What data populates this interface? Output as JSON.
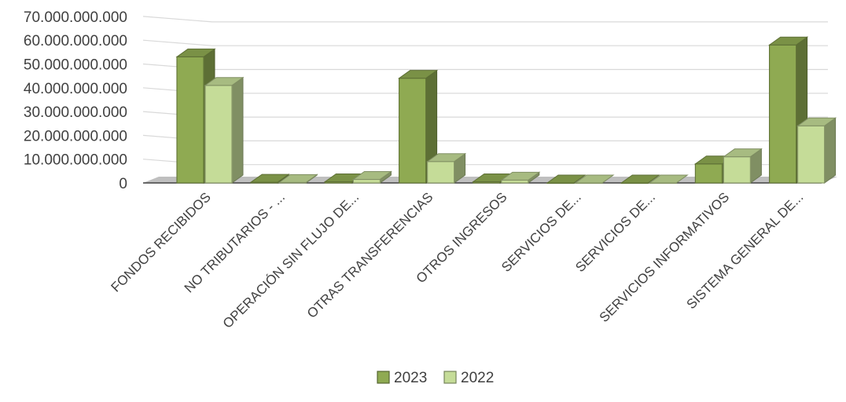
{
  "chart_data": {
    "type": "bar",
    "subtype": "3d-clustered-column",
    "categories": [
      "FONDOS RECIBIDOS",
      "NO TRIBUTARIOS - ...",
      "OPERACIÓN SIN FLUJO DE...",
      "OTRAS TRANSFERENCIAS",
      "OTROS INGRESOS",
      "SERVICIOS DE...",
      "SERVICIOS DE...",
      "SERVICIOS INFORMATIVOS",
      "SISTEMA GENERAL DE..."
    ],
    "series": [
      {
        "name": "2023",
        "color": "#8faa52",
        "values": [
          53000000000,
          300000000,
          500000000,
          44000000000,
          500000000,
          0,
          0,
          8000000000,
          58000000000
        ]
      },
      {
        "name": "2022",
        "color": "#c5dc98",
        "values": [
          41000000000,
          200000000,
          1500000000,
          9000000000,
          1200000000,
          0,
          0,
          11000000000,
          24000000000
        ]
      }
    ],
    "ylim": [
      0,
      70000000000
    ],
    "yticks": [
      {
        "value": 0,
        "label": "0"
      },
      {
        "value": 10000000000,
        "label": "10.000.000.000"
      },
      {
        "value": 20000000000,
        "label": "20.000.000.000"
      },
      {
        "value": 30000000000,
        "label": "30.000.000.000"
      },
      {
        "value": 40000000000,
        "label": "40.000.000.000"
      },
      {
        "value": 50000000000,
        "label": "50.000.000.000"
      },
      {
        "value": 60000000000,
        "label": "60.000.000.000"
      },
      {
        "value": 70000000000,
        "label": "70.000.000.000"
      }
    ],
    "title": "",
    "xlabel": "",
    "ylabel": "",
    "grid": true,
    "legend": "bottom-center",
    "colors": {
      "grid": "#d9d9d9",
      "floor": "#bfbfbf",
      "text": "#404040"
    }
  }
}
